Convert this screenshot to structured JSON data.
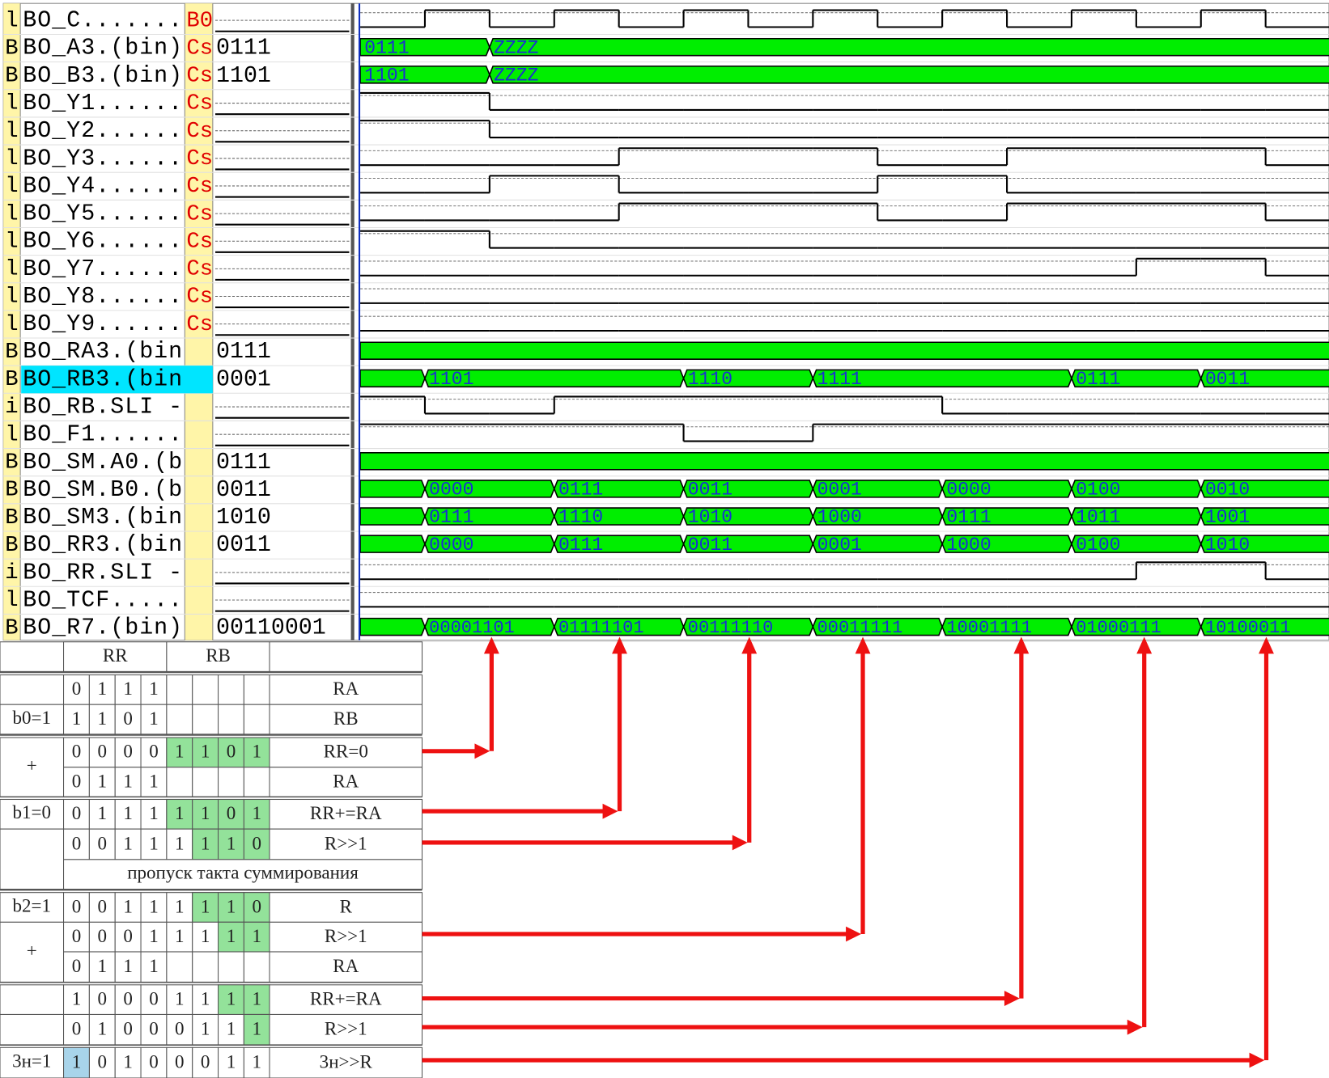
{
  "waveform": {
    "signals": [
      {
        "kind": "l",
        "name": "BO_C.......",
        "marker": "B0",
        "levels": [
          0,
          1,
          0,
          1,
          0,
          1,
          0,
          1,
          0,
          1,
          0,
          1,
          0,
          1,
          0
        ]
      },
      {
        "kind": "B",
        "name": "BO_A3.(bin)",
        "marker": "Cs",
        "value": "0111",
        "segments": [
          {
            "start": 0,
            "label": "0111"
          },
          {
            "start": 2,
            "label": "ZZZZ"
          }
        ]
      },
      {
        "kind": "B",
        "name": "BO_B3.(bin)",
        "marker": "Cs",
        "value": "1101",
        "segments": [
          {
            "start": 0,
            "label": "1101"
          },
          {
            "start": 2,
            "label": "ZZZZ"
          }
        ]
      },
      {
        "kind": "l",
        "name": "BO_Y1......",
        "marker": "Cs",
        "levels": [
          1,
          1,
          0,
          0,
          0,
          0,
          0,
          0,
          0,
          0,
          0,
          0,
          0,
          0,
          0
        ]
      },
      {
        "kind": "l",
        "name": "BO_Y2......",
        "marker": "Cs",
        "levels": [
          1,
          1,
          0,
          0,
          0,
          0,
          0,
          0,
          0,
          0,
          0,
          0,
          0,
          0,
          0
        ]
      },
      {
        "kind": "l",
        "name": "BO_Y3......",
        "marker": "Cs",
        "levels": [
          0,
          0,
          0,
          0,
          1,
          1,
          1,
          1,
          0,
          0,
          1,
          1,
          1,
          1,
          0
        ]
      },
      {
        "kind": "l",
        "name": "BO_Y4......",
        "marker": "Cs",
        "levels": [
          0,
          0,
          1,
          1,
          0,
          0,
          0,
          0,
          1,
          1,
          0,
          0,
          0,
          0,
          0
        ]
      },
      {
        "kind": "l",
        "name": "BO_Y5......",
        "marker": "Cs",
        "levels": [
          0,
          0,
          0,
          0,
          1,
          1,
          1,
          1,
          0,
          0,
          1,
          1,
          1,
          1,
          0
        ]
      },
      {
        "kind": "l",
        "name": "BO_Y6......",
        "marker": "Cs",
        "levels": [
          1,
          1,
          0,
          0,
          0,
          0,
          0,
          0,
          0,
          0,
          0,
          0,
          0,
          0,
          0
        ]
      },
      {
        "kind": "l",
        "name": "BO_Y7......",
        "marker": "Cs",
        "levels": [
          0,
          0,
          0,
          0,
          0,
          0,
          0,
          0,
          0,
          0,
          0,
          0,
          1,
          1,
          0
        ]
      },
      {
        "kind": "l",
        "name": "BO_Y8......",
        "marker": "Cs",
        "levels": [
          0,
          0,
          0,
          0,
          0,
          0,
          0,
          0,
          0,
          0,
          0,
          0,
          0,
          0,
          0
        ]
      },
      {
        "kind": "l",
        "name": "BO_Y9......",
        "marker": "Cs",
        "levels": [
          0,
          0,
          0,
          0,
          0,
          0,
          0,
          0,
          0,
          0,
          0,
          0,
          0,
          0,
          0
        ]
      },
      {
        "kind": "B",
        "name": "BO_RA3.(bin",
        "value": "0111",
        "segments": [
          {
            "start": 0,
            "label": null
          }
        ]
      },
      {
        "kind": "B",
        "name": "BO_RB3.(bin",
        "value": "0001",
        "selected": true,
        "segments": [
          {
            "start": 0,
            "label": null
          },
          {
            "start": 1,
            "label": "1101"
          },
          {
            "start": 5,
            "label": "1110"
          },
          {
            "start": 7,
            "label": "1111"
          },
          {
            "start": 11,
            "label": "0111"
          },
          {
            "start": 13,
            "label": "0011"
          }
        ]
      },
      {
        "kind": "i",
        "name": "BO_RB.SLI -",
        "levels": [
          1,
          0,
          0,
          1,
          1,
          1,
          1,
          1,
          1,
          0,
          0,
          0,
          0,
          0,
          0
        ]
      },
      {
        "kind": "l",
        "name": "BO_F1......",
        "levels": [
          1,
          1,
          1,
          1,
          1,
          0,
          0,
          1,
          1,
          1,
          1,
          1,
          1,
          1,
          1
        ]
      },
      {
        "kind": "B",
        "name": "BO_SM.A0.(b",
        "value": "0111",
        "segments": [
          {
            "start": 0,
            "label": null
          }
        ]
      },
      {
        "kind": "B",
        "name": "BO_SM.B0.(b",
        "value": "0011",
        "segments": [
          {
            "start": 0,
            "label": null
          },
          {
            "start": 1,
            "label": "0000"
          },
          {
            "start": 3,
            "label": "0111"
          },
          {
            "start": 5,
            "label": "0011"
          },
          {
            "start": 7,
            "label": "0001"
          },
          {
            "start": 9,
            "label": "0000"
          },
          {
            "start": 11,
            "label": "0100"
          },
          {
            "start": 13,
            "label": "0010"
          }
        ]
      },
      {
        "kind": "B",
        "name": "BO_SM3.(bin",
        "value": "1010",
        "segments": [
          {
            "start": 0,
            "label": null
          },
          {
            "start": 1,
            "label": "0111"
          },
          {
            "start": 3,
            "label": "1110"
          },
          {
            "start": 5,
            "label": "1010"
          },
          {
            "start": 7,
            "label": "1000"
          },
          {
            "start": 9,
            "label": "0111"
          },
          {
            "start": 11,
            "label": "1011"
          },
          {
            "start": 13,
            "label": "1001"
          }
        ]
      },
      {
        "kind": "B",
        "name": "BO_RR3.(bin",
        "value": "0011",
        "segments": [
          {
            "start": 0,
            "label": null
          },
          {
            "start": 1,
            "label": "0000"
          },
          {
            "start": 3,
            "label": "0111"
          },
          {
            "start": 5,
            "label": "0011"
          },
          {
            "start": 7,
            "label": "0001"
          },
          {
            "start": 9,
            "label": "1000"
          },
          {
            "start": 11,
            "label": "0100"
          },
          {
            "start": 13,
            "label": "1010"
          }
        ]
      },
      {
        "kind": "i",
        "name": "BO_RR.SLI -",
        "levels": [
          0,
          0,
          0,
          0,
          0,
          0,
          0,
          0,
          0,
          0,
          0,
          0,
          1,
          1,
          0
        ]
      },
      {
        "kind": "l",
        "name": "BO_TCF.....",
        "levels": [
          0,
          0,
          0,
          0,
          0,
          0,
          0,
          0,
          0,
          0,
          0,
          0,
          0,
          0,
          0
        ]
      },
      {
        "kind": "B",
        "name": "BO_R7.(bin)",
        "value": "00110001",
        "segments": [
          {
            "start": 0,
            "label": null
          },
          {
            "start": 1,
            "label": "00001101"
          },
          {
            "start": 3,
            "label": "01111101"
          },
          {
            "start": 5,
            "label": "00111110"
          },
          {
            "start": 7,
            "label": "00011111"
          },
          {
            "start": 9,
            "label": "10001111"
          },
          {
            "start": 11,
            "label": "01000111"
          },
          {
            "start": 13,
            "label": "10100011"
          }
        ]
      }
    ],
    "time_end": 15,
    "bus_color": "#00ee00",
    "selected_color": "#00e5ff"
  },
  "table": {
    "header": [
      "RR",
      "RB"
    ],
    "highlight_color": "#93e29a",
    "sign_color": "#a8d4ea",
    "rows": [
      {
        "bits": [
          0,
          1,
          1,
          1,
          null,
          null,
          null,
          null
        ],
        "note": "RA"
      },
      {
        "label": "b0=1",
        "bits": [
          1,
          1,
          0,
          1,
          null,
          null,
          null,
          null
        ],
        "note": "RB"
      },
      {
        "label": "+",
        "bits": [
          0,
          0,
          0,
          0,
          1,
          1,
          0,
          1
        ],
        "highlight": [
          4,
          5,
          6,
          7
        ],
        "note": "RR=0"
      },
      {
        "bits": [
          0,
          1,
          1,
          1,
          null,
          null,
          null,
          null
        ],
        "note": "RA"
      },
      {
        "label": "b1=0",
        "bits": [
          0,
          1,
          1,
          1,
          1,
          1,
          0,
          1
        ],
        "highlight": [
          4,
          5,
          6,
          7
        ],
        "note": "RR+=RA"
      },
      {
        "bits": [
          0,
          0,
          1,
          1,
          1,
          1,
          1,
          0
        ],
        "highlight": [
          5,
          6,
          7
        ],
        "note": "R>>1"
      },
      {
        "span_text": "пропуск такта суммирования"
      },
      {
        "label": "b2=1",
        "bits": [
          0,
          0,
          1,
          1,
          1,
          1,
          1,
          0
        ],
        "highlight": [
          5,
          6,
          7
        ],
        "note": "R"
      },
      {
        "label": "+",
        "bits": [
          0,
          0,
          0,
          1,
          1,
          1,
          1,
          1
        ],
        "highlight": [
          6,
          7
        ],
        "note": "R>>1"
      },
      {
        "bits": [
          0,
          1,
          1,
          1,
          null,
          null,
          null,
          null
        ],
        "note": "RA"
      },
      {
        "bits": [
          1,
          0,
          0,
          0,
          1,
          1,
          1,
          1
        ],
        "highlight": [
          6,
          7
        ],
        "note": "RR+=RA"
      },
      {
        "bits": [
          0,
          1,
          0,
          0,
          0,
          1,
          1,
          1
        ],
        "highlight": [
          7
        ],
        "note": "R>>1"
      },
      {
        "label": "3н=1",
        "bits": [
          1,
          0,
          1,
          0,
          0,
          0,
          1,
          1
        ],
        "sign": [
          0
        ],
        "note": "3н>>R"
      }
    ]
  }
}
